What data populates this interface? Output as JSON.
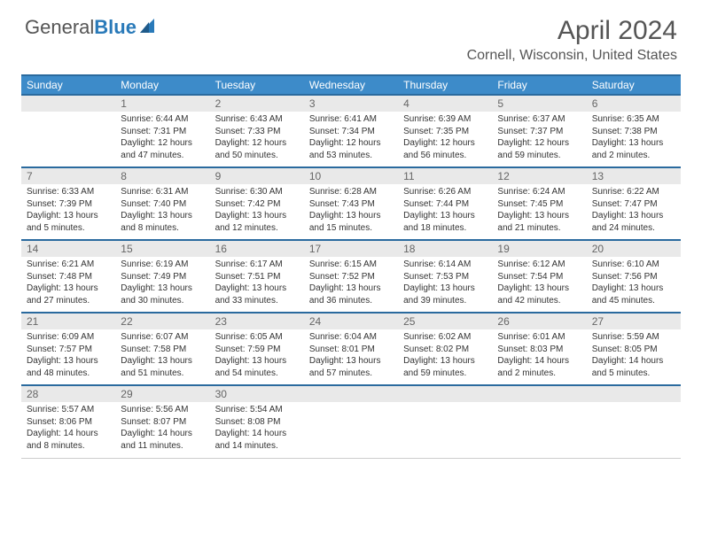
{
  "brand": {
    "part1": "General",
    "part2": "Blue"
  },
  "title": "April 2024",
  "location": "Cornell, Wisconsin, United States",
  "colors": {
    "header_bg": "#3d8bc9",
    "header_border": "#2a6a9e",
    "daynum_bg": "#e9e9e9",
    "text": "#333333",
    "title_text": "#555555"
  },
  "day_headers": [
    "Sunday",
    "Monday",
    "Tuesday",
    "Wednesday",
    "Thursday",
    "Friday",
    "Saturday"
  ],
  "weeks": [
    [
      null,
      {
        "n": "1",
        "sr": "Sunrise: 6:44 AM",
        "ss": "Sunset: 7:31 PM",
        "dl": "Daylight: 12 hours and 47 minutes."
      },
      {
        "n": "2",
        "sr": "Sunrise: 6:43 AM",
        "ss": "Sunset: 7:33 PM",
        "dl": "Daylight: 12 hours and 50 minutes."
      },
      {
        "n": "3",
        "sr": "Sunrise: 6:41 AM",
        "ss": "Sunset: 7:34 PM",
        "dl": "Daylight: 12 hours and 53 minutes."
      },
      {
        "n": "4",
        "sr": "Sunrise: 6:39 AM",
        "ss": "Sunset: 7:35 PM",
        "dl": "Daylight: 12 hours and 56 minutes."
      },
      {
        "n": "5",
        "sr": "Sunrise: 6:37 AM",
        "ss": "Sunset: 7:37 PM",
        "dl": "Daylight: 12 hours and 59 minutes."
      },
      {
        "n": "6",
        "sr": "Sunrise: 6:35 AM",
        "ss": "Sunset: 7:38 PM",
        "dl": "Daylight: 13 hours and 2 minutes."
      }
    ],
    [
      {
        "n": "7",
        "sr": "Sunrise: 6:33 AM",
        "ss": "Sunset: 7:39 PM",
        "dl": "Daylight: 13 hours and 5 minutes."
      },
      {
        "n": "8",
        "sr": "Sunrise: 6:31 AM",
        "ss": "Sunset: 7:40 PM",
        "dl": "Daylight: 13 hours and 8 minutes."
      },
      {
        "n": "9",
        "sr": "Sunrise: 6:30 AM",
        "ss": "Sunset: 7:42 PM",
        "dl": "Daylight: 13 hours and 12 minutes."
      },
      {
        "n": "10",
        "sr": "Sunrise: 6:28 AM",
        "ss": "Sunset: 7:43 PM",
        "dl": "Daylight: 13 hours and 15 minutes."
      },
      {
        "n": "11",
        "sr": "Sunrise: 6:26 AM",
        "ss": "Sunset: 7:44 PM",
        "dl": "Daylight: 13 hours and 18 minutes."
      },
      {
        "n": "12",
        "sr": "Sunrise: 6:24 AM",
        "ss": "Sunset: 7:45 PM",
        "dl": "Daylight: 13 hours and 21 minutes."
      },
      {
        "n": "13",
        "sr": "Sunrise: 6:22 AM",
        "ss": "Sunset: 7:47 PM",
        "dl": "Daylight: 13 hours and 24 minutes."
      }
    ],
    [
      {
        "n": "14",
        "sr": "Sunrise: 6:21 AM",
        "ss": "Sunset: 7:48 PM",
        "dl": "Daylight: 13 hours and 27 minutes."
      },
      {
        "n": "15",
        "sr": "Sunrise: 6:19 AM",
        "ss": "Sunset: 7:49 PM",
        "dl": "Daylight: 13 hours and 30 minutes."
      },
      {
        "n": "16",
        "sr": "Sunrise: 6:17 AM",
        "ss": "Sunset: 7:51 PM",
        "dl": "Daylight: 13 hours and 33 minutes."
      },
      {
        "n": "17",
        "sr": "Sunrise: 6:15 AM",
        "ss": "Sunset: 7:52 PM",
        "dl": "Daylight: 13 hours and 36 minutes."
      },
      {
        "n": "18",
        "sr": "Sunrise: 6:14 AM",
        "ss": "Sunset: 7:53 PM",
        "dl": "Daylight: 13 hours and 39 minutes."
      },
      {
        "n": "19",
        "sr": "Sunrise: 6:12 AM",
        "ss": "Sunset: 7:54 PM",
        "dl": "Daylight: 13 hours and 42 minutes."
      },
      {
        "n": "20",
        "sr": "Sunrise: 6:10 AM",
        "ss": "Sunset: 7:56 PM",
        "dl": "Daylight: 13 hours and 45 minutes."
      }
    ],
    [
      {
        "n": "21",
        "sr": "Sunrise: 6:09 AM",
        "ss": "Sunset: 7:57 PM",
        "dl": "Daylight: 13 hours and 48 minutes."
      },
      {
        "n": "22",
        "sr": "Sunrise: 6:07 AM",
        "ss": "Sunset: 7:58 PM",
        "dl": "Daylight: 13 hours and 51 minutes."
      },
      {
        "n": "23",
        "sr": "Sunrise: 6:05 AM",
        "ss": "Sunset: 7:59 PM",
        "dl": "Daylight: 13 hours and 54 minutes."
      },
      {
        "n": "24",
        "sr": "Sunrise: 6:04 AM",
        "ss": "Sunset: 8:01 PM",
        "dl": "Daylight: 13 hours and 57 minutes."
      },
      {
        "n": "25",
        "sr": "Sunrise: 6:02 AM",
        "ss": "Sunset: 8:02 PM",
        "dl": "Daylight: 13 hours and 59 minutes."
      },
      {
        "n": "26",
        "sr": "Sunrise: 6:01 AM",
        "ss": "Sunset: 8:03 PM",
        "dl": "Daylight: 14 hours and 2 minutes."
      },
      {
        "n": "27",
        "sr": "Sunrise: 5:59 AM",
        "ss": "Sunset: 8:05 PM",
        "dl": "Daylight: 14 hours and 5 minutes."
      }
    ],
    [
      {
        "n": "28",
        "sr": "Sunrise: 5:57 AM",
        "ss": "Sunset: 8:06 PM",
        "dl": "Daylight: 14 hours and 8 minutes."
      },
      {
        "n": "29",
        "sr": "Sunrise: 5:56 AM",
        "ss": "Sunset: 8:07 PM",
        "dl": "Daylight: 14 hours and 11 minutes."
      },
      {
        "n": "30",
        "sr": "Sunrise: 5:54 AM",
        "ss": "Sunset: 8:08 PM",
        "dl": "Daylight: 14 hours and 14 minutes."
      },
      null,
      null,
      null,
      null
    ]
  ]
}
